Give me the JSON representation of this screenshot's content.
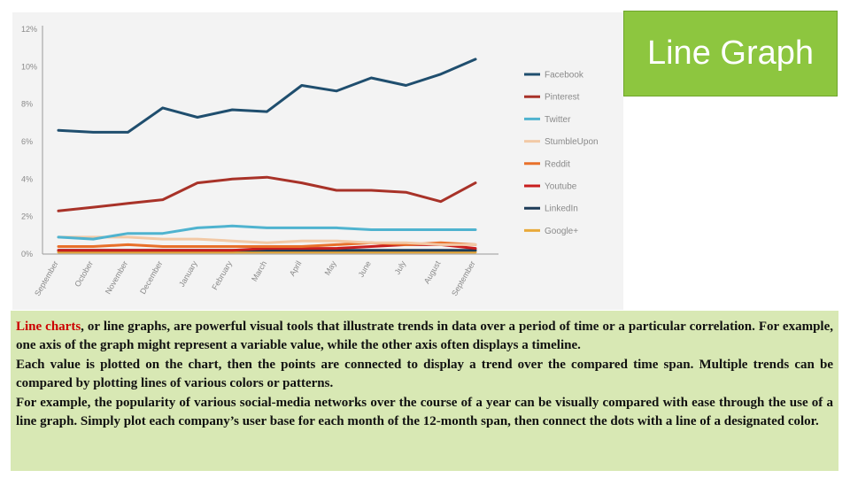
{
  "title": "Line Graph",
  "colors": {
    "title_bg": "#8dc63f",
    "text_bg": "#d8e8b4",
    "chart_bg": "#f3f3f3",
    "highlight": "#cc0000"
  },
  "body": {
    "p1_highlight": "Line charts",
    "p1_rest": ", or line graphs, are powerful visual tools that illustrate trends in data over a period of time or a particular correlation. For example, one axis of the graph might represent a variable value, while the other axis often displays a timeline.",
    "p2": "Each value is plotted on the chart, then the points are connected to display a trend over the compared time span. Multiple trends can be compared by plotting lines of various colors or patterns.",
    "p3": "For example, the popularity of various social-media networks over the course of a year can be visually compared with ease through the use of a line graph. Simply plot each company’s user base for each month of the 12-month span, then connect the dots with a line of a designated color."
  },
  "chart_data": {
    "type": "line",
    "title": "",
    "xlabel": "",
    "ylabel": "",
    "ylim": [
      0,
      12
    ],
    "yticks": [
      0,
      2,
      4,
      6,
      8,
      10,
      12
    ],
    "ytick_labels": [
      "0%",
      "2%",
      "4%",
      "6%",
      "8%",
      "10%",
      "12%"
    ],
    "grid": false,
    "legend_position": "right",
    "categories": [
      "September",
      "October",
      "November",
      "December",
      "January",
      "February",
      "March",
      "April",
      "May",
      "June",
      "July",
      "August",
      "September"
    ],
    "series": [
      {
        "name": "Facebook",
        "color": "#1f4e6e",
        "values": [
          6.6,
          6.5,
          6.5,
          7.8,
          7.3,
          7.7,
          7.6,
          9.0,
          8.7,
          9.4,
          9.0,
          9.6,
          10.4
        ]
      },
      {
        "name": "Pinterest",
        "color": "#a83228",
        "values": [
          2.3,
          2.5,
          2.7,
          2.9,
          3.8,
          4.0,
          4.1,
          3.8,
          3.4,
          3.4,
          3.3,
          2.8,
          3.8
        ]
      },
      {
        "name": "Twitter",
        "color": "#4fb3cf",
        "values": [
          0.9,
          0.8,
          1.1,
          1.1,
          1.4,
          1.5,
          1.4,
          1.4,
          1.4,
          1.3,
          1.3,
          1.3,
          1.3
        ]
      },
      {
        "name": "StumbleUpon",
        "color": "#f2c9a6",
        "values": [
          0.9,
          0.9,
          0.9,
          0.8,
          0.8,
          0.7,
          0.6,
          0.7,
          0.7,
          0.6,
          0.6,
          0.5,
          0.5
        ]
      },
      {
        "name": "Reddit",
        "color": "#e8702a",
        "values": [
          0.4,
          0.4,
          0.5,
          0.4,
          0.4,
          0.4,
          0.4,
          0.4,
          0.5,
          0.6,
          0.5,
          0.6,
          0.5
        ]
      },
      {
        "name": "Youtube",
        "color": "#c81e1e",
        "values": [
          0.2,
          0.2,
          0.2,
          0.2,
          0.2,
          0.2,
          0.3,
          0.3,
          0.3,
          0.4,
          0.5,
          0.5,
          0.3
        ]
      },
      {
        "name": "LinkedIn",
        "color": "#1d3b57",
        "values": [
          0.2,
          0.2,
          0.2,
          0.2,
          0.2,
          0.2,
          0.2,
          0.2,
          0.2,
          0.2,
          0.2,
          0.2,
          0.2
        ]
      },
      {
        "name": "Google+",
        "color": "#e8a93a",
        "values": [
          0.1,
          0.1,
          0.1,
          0.1,
          0.1,
          0.1,
          0.1,
          0.1,
          0.1,
          0.1,
          0.1,
          0.1,
          0.1
        ]
      }
    ]
  }
}
